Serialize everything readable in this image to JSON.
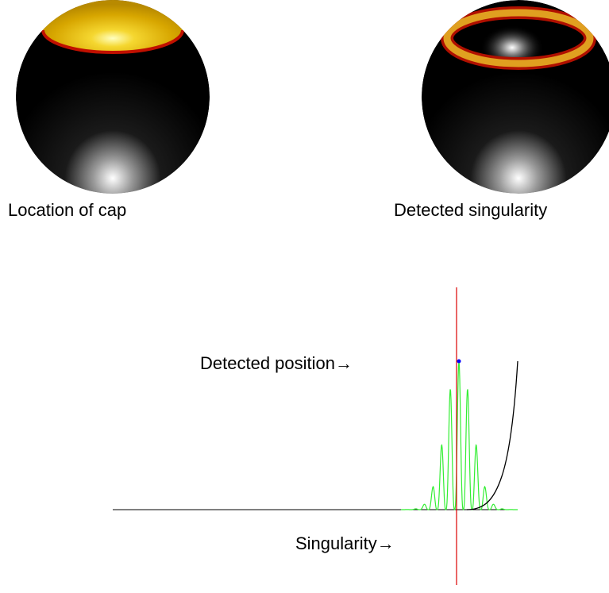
{
  "figure": {
    "left_caption": "Location of cap",
    "right_caption": "Detected singularity",
    "detected_label": "Detected position→",
    "singularity_label": "Singularity→"
  }
}
